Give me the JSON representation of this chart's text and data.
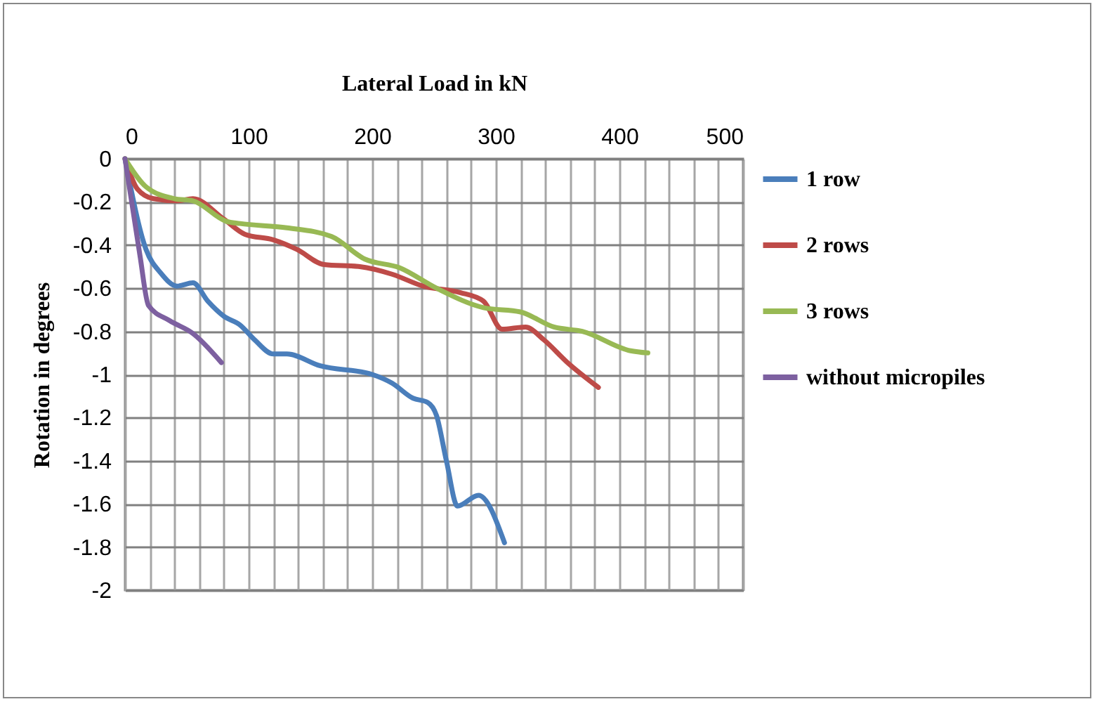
{
  "chart_data": {
    "type": "line",
    "xlabel": "Lateral Load in kN",
    "ylabel": "Rotation in degrees",
    "xlim": [
      0,
      500
    ],
    "ylim": [
      -2,
      0
    ],
    "xticks": [
      0,
      {
        "value": 20,
        "label": null
      },
      {
        "value": 40,
        "label": null
      },
      {
        "value": 60,
        "label": null
      },
      {
        "value": 80,
        "label": null
      },
      100,
      {
        "value": 120,
        "label": null
      },
      {
        "value": 140,
        "label": null
      },
      {
        "value": 160,
        "label": null
      },
      {
        "value": 180,
        "label": null
      },
      200,
      {
        "value": 220,
        "label": null
      },
      {
        "value": 240,
        "label": null
      },
      {
        "value": 260,
        "label": null
      },
      {
        "value": 280,
        "label": null
      },
      300,
      {
        "value": 320,
        "label": null
      },
      {
        "value": 340,
        "label": null
      },
      {
        "value": 360,
        "label": null
      },
      {
        "value": 380,
        "label": null
      },
      400,
      {
        "value": 420,
        "label": null
      },
      {
        "value": 440,
        "label": null
      },
      {
        "value": 460,
        "label": null
      },
      {
        "value": 480,
        "label": null
      },
      500
    ],
    "yticks": [
      0,
      -0.2,
      -0.4,
      -0.6,
      -0.8,
      -1,
      -1.2,
      -1.4,
      -1.6,
      -1.8,
      -2
    ],
    "grid": true,
    "legend": "right",
    "marker": "none",
    "series": [
      {
        "name": "1 row",
        "color": "#4a7ebb",
        "x": [
          0,
          17,
          29,
          42,
          55,
          67,
          80,
          93,
          105,
          120,
          131,
          158,
          200,
          216,
          233,
          245,
          252,
          260,
          269,
          286,
          307
        ],
        "values": [
          0,
          -0.42,
          -0.53,
          -0.59,
          -0.575,
          -0.66,
          -0.73,
          -0.77,
          -0.84,
          -0.905,
          -0.905,
          -0.96,
          -1.0,
          -1.04,
          -1.11,
          -1.13,
          -1.19,
          -1.4,
          -1.61,
          -1.56,
          -1.78
        ]
      },
      {
        "name": "2 rows",
        "color": "#be4b48",
        "x": [
          0,
          10,
          23,
          42,
          55,
          80,
          97,
          120,
          139,
          161,
          190,
          216,
          241,
          271,
          290,
          305,
          324,
          339,
          358,
          383
        ],
        "values": [
          0,
          -0.14,
          -0.185,
          -0.195,
          -0.185,
          -0.28,
          -0.35,
          -0.376,
          -0.42,
          -0.49,
          -0.5,
          -0.535,
          -0.59,
          -0.62,
          -0.66,
          -0.79,
          -0.78,
          -0.84,
          -0.945,
          -1.06
        ]
      },
      {
        "name": "3 rows",
        "color": "#98b954",
        "x": [
          0,
          17,
          40,
          55,
          82,
          93,
          131,
          167,
          194,
          222,
          252,
          290,
          320,
          347,
          370,
          409,
          423
        ],
        "values": [
          0,
          -0.13,
          -0.185,
          -0.195,
          -0.29,
          -0.3,
          -0.32,
          -0.36,
          -0.465,
          -0.505,
          -0.6,
          -0.69,
          -0.71,
          -0.78,
          -0.8,
          -0.89,
          -0.9
        ]
      },
      {
        "name": "without micropiles",
        "color": "#7d60a0",
        "x": [
          0,
          12,
          19,
          36,
          55,
          78
        ],
        "values": [
          0,
          -0.445,
          -0.68,
          -0.75,
          -0.81,
          -0.945
        ]
      }
    ]
  }
}
